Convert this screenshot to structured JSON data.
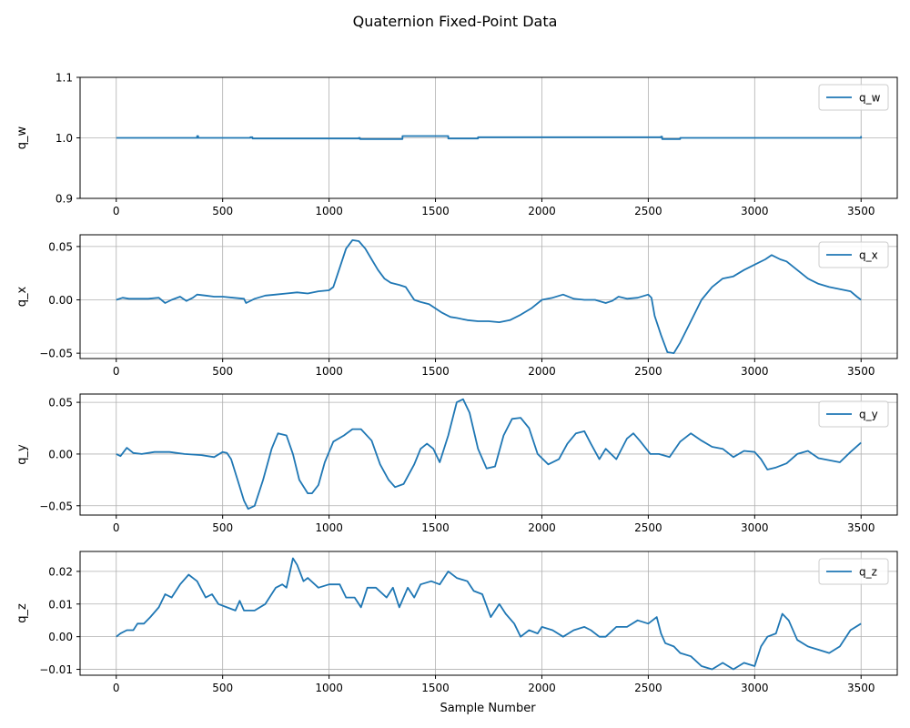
{
  "figure": {
    "title": "Quaternion Fixed-Point Data",
    "xlabel": "Sample Number"
  },
  "colors": {
    "line": "#1f77b4",
    "grid": "#b0b0b0",
    "axes": "#000000"
  },
  "chart_data": [
    {
      "type": "line",
      "ylabel": "q_w",
      "legend": {
        "label": "q_w",
        "placement": "top-right"
      },
      "xlim": [
        -170,
        3670
      ],
      "ylim": [
        0.9,
        1.1
      ],
      "xticks": [
        0,
        500,
        1000,
        1500,
        2000,
        2500,
        3000,
        3500
      ],
      "yticks": [
        0.9,
        1.0,
        1.1
      ],
      "yticklabels": [
        "0.9",
        "1.0",
        "1.1"
      ],
      "grid": true,
      "series": [
        {
          "name": "q_w",
          "step": true,
          "x": [
            0,
            380,
            385,
            630,
            640,
            1140,
            1145,
            1340,
            1345,
            1555,
            1560,
            1650,
            1700,
            2560,
            2565,
            2640,
            2650,
            3000,
            3500
          ],
          "y": [
            1.0,
            1.003,
            1.0,
            1.001,
            0.999,
            1.0,
            0.998,
            0.998,
            1.003,
            1.003,
            0.999,
            0.999,
            1.001,
            1.002,
            0.998,
            0.998,
            1.0,
            1.0,
            1.003
          ]
        }
      ]
    },
    {
      "type": "line",
      "ylabel": "q_x",
      "legend": {
        "label": "q_x",
        "placement": "top-right"
      },
      "xlim": [
        -170,
        3670
      ],
      "ylim": [
        -0.055,
        0.061
      ],
      "xticks": [
        0,
        500,
        1000,
        1500,
        2000,
        2500,
        3000,
        3500
      ],
      "yticks": [
        -0.05,
        0.0,
        0.05
      ],
      "yticklabels": [
        "−0.05",
        "0.00",
        "0.05"
      ],
      "grid": true,
      "series": [
        {
          "name": "q_x",
          "x": [
            0,
            30,
            60,
            100,
            150,
            200,
            230,
            260,
            300,
            330,
            360,
            380,
            420,
            460,
            500,
            550,
            600,
            610,
            650,
            700,
            750,
            800,
            850,
            900,
            950,
            1000,
            1020,
            1050,
            1080,
            1110,
            1140,
            1170,
            1200,
            1230,
            1260,
            1290,
            1330,
            1360,
            1400,
            1430,
            1470,
            1500,
            1530,
            1570,
            1600,
            1650,
            1700,
            1750,
            1800,
            1850,
            1900,
            1950,
            2000,
            2050,
            2100,
            2150,
            2200,
            2250,
            2300,
            2330,
            2360,
            2400,
            2450,
            2500,
            2515,
            2530,
            2560,
            2590,
            2620,
            2650,
            2700,
            2750,
            2800,
            2850,
            2900,
            2950,
            3000,
            3050,
            3080,
            3120,
            3150,
            3200,
            3250,
            3300,
            3350,
            3400,
            3450,
            3480,
            3500
          ],
          "y": [
            0.0,
            0.002,
            0.001,
            0.001,
            0.001,
            0.002,
            -0.003,
            0.0,
            0.003,
            -0.001,
            0.002,
            0.005,
            0.004,
            0.003,
            0.003,
            0.002,
            0.001,
            -0.003,
            0.001,
            0.004,
            0.005,
            0.006,
            0.007,
            0.006,
            0.008,
            0.009,
            0.012,
            0.03,
            0.048,
            0.056,
            0.055,
            0.048,
            0.038,
            0.028,
            0.02,
            0.016,
            0.014,
            0.012,
            0.0,
            -0.002,
            -0.004,
            -0.008,
            -0.012,
            -0.016,
            -0.017,
            -0.019,
            -0.02,
            -0.02,
            -0.021,
            -0.019,
            -0.014,
            -0.008,
            0.0,
            0.002,
            0.005,
            0.001,
            0.0,
            0.0,
            -0.003,
            -0.001,
            0.003,
            0.001,
            0.002,
            0.005,
            0.002,
            -0.015,
            -0.033,
            -0.049,
            -0.05,
            -0.04,
            -0.02,
            0.0,
            0.012,
            0.02,
            0.022,
            0.028,
            0.033,
            0.038,
            0.042,
            0.038,
            0.036,
            0.028,
            0.02,
            0.015,
            0.012,
            0.01,
            0.008,
            0.003,
            0.0
          ]
        }
      ]
    },
    {
      "type": "line",
      "ylabel": "q_y",
      "legend": {
        "label": "q_y",
        "placement": "top-right"
      },
      "xlim": [
        -170,
        3670
      ],
      "ylim": [
        -0.059,
        0.058
      ],
      "xticks": [
        0,
        500,
        1000,
        1500,
        2000,
        2500,
        3000,
        3500
      ],
      "yticks": [
        -0.05,
        0.0,
        0.05
      ],
      "yticklabels": [
        "−0.05",
        "0.00",
        "0.05"
      ],
      "grid": true,
      "series": [
        {
          "name": "q_y",
          "x": [
            0,
            20,
            50,
            80,
            120,
            180,
            250,
            320,
            400,
            460,
            500,
            520,
            540,
            570,
            600,
            620,
            650,
            690,
            730,
            760,
            800,
            830,
            860,
            900,
            920,
            950,
            980,
            1020,
            1070,
            1110,
            1150,
            1200,
            1240,
            1280,
            1310,
            1350,
            1400,
            1430,
            1460,
            1490,
            1520,
            1560,
            1600,
            1630,
            1660,
            1700,
            1740,
            1780,
            1820,
            1860,
            1900,
            1940,
            1980,
            2030,
            2080,
            2120,
            2160,
            2200,
            2230,
            2270,
            2300,
            2350,
            2400,
            2430,
            2460,
            2510,
            2550,
            2600,
            2650,
            2700,
            2750,
            2800,
            2850,
            2900,
            2950,
            3000,
            3030,
            3060,
            3100,
            3150,
            3200,
            3250,
            3300,
            3350,
            3400,
            3450,
            3500
          ],
          "y": [
            0.0,
            -0.002,
            0.006,
            0.001,
            0.0,
            0.002,
            0.002,
            0.0,
            -0.001,
            -0.003,
            0.002,
            0.001,
            -0.005,
            -0.025,
            -0.045,
            -0.053,
            -0.05,
            -0.025,
            0.005,
            0.02,
            0.018,
            0.0,
            -0.025,
            -0.038,
            -0.038,
            -0.03,
            -0.008,
            0.012,
            0.018,
            0.024,
            0.024,
            0.013,
            -0.01,
            -0.025,
            -0.032,
            -0.029,
            -0.01,
            0.005,
            0.01,
            0.005,
            -0.008,
            0.018,
            0.05,
            0.053,
            0.04,
            0.005,
            -0.014,
            -0.012,
            0.018,
            0.034,
            0.035,
            0.025,
            0.0,
            -0.01,
            -0.005,
            0.01,
            0.02,
            0.022,
            0.01,
            -0.005,
            0.005,
            -0.005,
            0.015,
            0.02,
            0.013,
            0.0,
            0.0,
            -0.003,
            0.012,
            0.02,
            0.013,
            0.007,
            0.005,
            -0.003,
            0.003,
            0.002,
            -0.005,
            -0.015,
            -0.013,
            -0.009,
            0.0,
            0.003,
            -0.004,
            -0.006,
            -0.008,
            0.002,
            0.011
          ]
        }
      ]
    },
    {
      "type": "line",
      "ylabel": "q_z",
      "legend": {
        "label": "q_z",
        "placement": "top-right"
      },
      "xlim": [
        -170,
        3670
      ],
      "ylim": [
        -0.0118,
        0.0261
      ],
      "xticks": [
        0,
        500,
        1000,
        1500,
        2000,
        2500,
        3000,
        3500
      ],
      "yticks": [
        -0.01,
        0.0,
        0.01,
        0.02
      ],
      "yticklabels": [
        "−0.01",
        "0.00",
        "0.01",
        "0.02"
      ],
      "grid": true,
      "series": [
        {
          "name": "q_z",
          "x": [
            0,
            20,
            50,
            80,
            100,
            130,
            160,
            200,
            230,
            260,
            300,
            340,
            380,
            420,
            450,
            480,
            520,
            560,
            580,
            600,
            650,
            700,
            750,
            780,
            800,
            830,
            850,
            880,
            900,
            950,
            1000,
            1050,
            1080,
            1120,
            1150,
            1180,
            1220,
            1270,
            1300,
            1330,
            1370,
            1400,
            1430,
            1480,
            1520,
            1560,
            1600,
            1650,
            1680,
            1720,
            1760,
            1800,
            1830,
            1870,
            1900,
            1940,
            1980,
            2000,
            2050,
            2100,
            2150,
            2200,
            2230,
            2270,
            2300,
            2350,
            2400,
            2450,
            2500,
            2540,
            2560,
            2580,
            2620,
            2650,
            2700,
            2750,
            2800,
            2850,
            2900,
            2950,
            3000,
            3030,
            3060,
            3100,
            3130,
            3160,
            3200,
            3250,
            3300,
            3350,
            3400,
            3450,
            3500
          ],
          "y": [
            0.0,
            0.001,
            0.002,
            0.002,
            0.004,
            0.004,
            0.006,
            0.009,
            0.013,
            0.012,
            0.016,
            0.019,
            0.017,
            0.012,
            0.013,
            0.01,
            0.009,
            0.008,
            0.011,
            0.008,
            0.008,
            0.01,
            0.015,
            0.016,
            0.015,
            0.024,
            0.022,
            0.017,
            0.018,
            0.015,
            0.016,
            0.016,
            0.012,
            0.012,
            0.009,
            0.015,
            0.015,
            0.012,
            0.015,
            0.009,
            0.015,
            0.012,
            0.016,
            0.017,
            0.016,
            0.02,
            0.018,
            0.017,
            0.014,
            0.013,
            0.006,
            0.01,
            0.007,
            0.004,
            0.0,
            0.002,
            0.001,
            0.003,
            0.002,
            0.0,
            0.002,
            0.003,
            0.002,
            0.0,
            0.0,
            0.003,
            0.003,
            0.005,
            0.004,
            0.006,
            0.001,
            -0.002,
            -0.003,
            -0.005,
            -0.006,
            -0.009,
            -0.01,
            -0.008,
            -0.01,
            -0.008,
            -0.009,
            -0.003,
            0.0,
            0.001,
            0.007,
            0.005,
            -0.001,
            -0.003,
            -0.004,
            -0.005,
            -0.003,
            0.002,
            0.004
          ]
        }
      ]
    }
  ]
}
